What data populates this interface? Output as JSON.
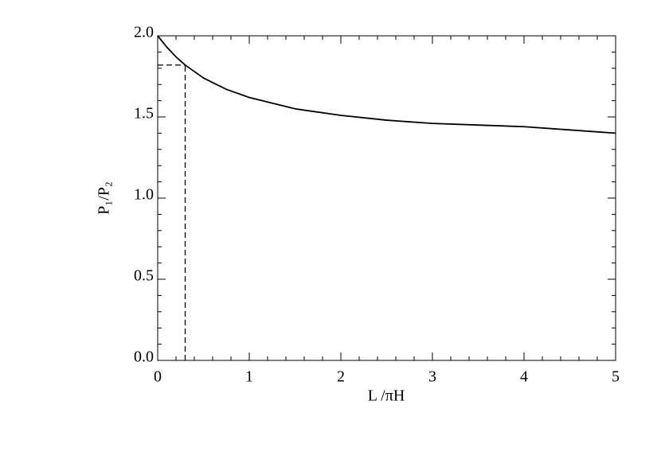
{
  "chart_data": {
    "type": "line",
    "xlabel": "L /πH",
    "ylabel": "P₁/P₂",
    "x": [
      0,
      0.1,
      0.2,
      0.3,
      0.5,
      0.75,
      1,
      1.5,
      2,
      2.5,
      3,
      3.5,
      4,
      4.5,
      5
    ],
    "series": [
      {
        "color": "#000000",
        "values": [
          2.0,
          1.93,
          1.87,
          1.82,
          1.74,
          1.67,
          1.62,
          1.55,
          1.51,
          1.48,
          1.46,
          1.45,
          1.44,
          1.42,
          1.4
        ]
      }
    ],
    "reference": {
      "x": 0.3,
      "y": 1.82
    },
    "xlim": [
      0,
      5
    ],
    "ylim": [
      0,
      2
    ],
    "xticks": [
      0,
      1,
      2,
      3,
      4,
      5
    ],
    "yticks": [
      {
        "value": 0,
        "label": "0.0"
      },
      0.5,
      {
        "value": 1,
        "label": "1.0"
      },
      1.5,
      {
        "value": 2,
        "label": "2.0"
      }
    ],
    "minor_divisions": 5
  }
}
